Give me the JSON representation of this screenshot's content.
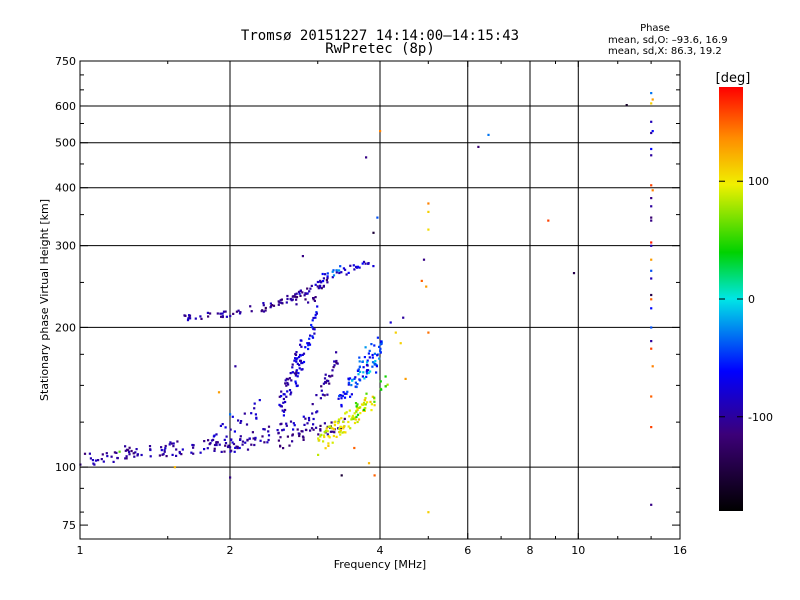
{
  "header": {
    "title_line1": "Tromsø 20151227 14:14:00–14:15:43",
    "title_line2": "RwPretec (8p)"
  },
  "phase_box": {
    "heading": "Phase",
    "line_o": "mean, sd,O: –93.6, 16.9",
    "line_x": "mean, sd,X:  86.3, 19.2"
  },
  "colorbar": {
    "label": "[deg]",
    "range": [
      -180,
      180
    ],
    "ticks": [
      {
        "value": 100,
        "label": "100"
      },
      {
        "value": 0,
        "label": "0"
      },
      {
        "value": -100,
        "label": "-100"
      }
    ]
  },
  "chart_data": {
    "type": "scatter",
    "title": "Tromsø 20151227 14:14:00–14:15:43",
    "subtitle": "RwPretec (8p)",
    "xlabel": "Frequency [MHz]",
    "ylabel": "Stationary phase Virtual Height [km]",
    "x_scale": "log",
    "y_scale": "log",
    "xlim": [
      1,
      16
    ],
    "ylim": [
      70,
      750
    ],
    "x_ticks": [
      {
        "v": 1,
        "label": "1"
      },
      {
        "v": 2,
        "label": "2"
      },
      {
        "v": 4,
        "label": "4"
      },
      {
        "v": 6,
        "label": "6"
      },
      {
        "v": 8,
        "label": "8"
      },
      {
        "v": 10,
        "label": "10"
      },
      {
        "v": 16,
        "label": "16"
      }
    ],
    "x_grid": [
      2,
      4,
      6,
      8,
      10
    ],
    "y_ticks": [
      {
        "v": 75,
        "label": "75"
      },
      {
        "v": 100,
        "label": "100"
      },
      {
        "v": 200,
        "label": "200"
      },
      {
        "v": 300,
        "label": "300"
      },
      {
        "v": 400,
        "label": "400"
      },
      {
        "v": 500,
        "label": "500"
      },
      {
        "v": 600,
        "label": "600"
      },
      {
        "v": 750,
        "label": "750"
      }
    ],
    "y_grid": [
      100,
      200,
      300,
      400,
      500,
      600
    ],
    "grid": true,
    "color_variable": "phase [deg]",
    "traces": [
      {
        "kind": "band",
        "f_start": 1.0,
        "f_end": 1.3,
        "h_start": 103,
        "h_end": 108,
        "phase": -100,
        "n": 35,
        "spread": 4
      },
      {
        "kind": "band",
        "f_start": 1.3,
        "f_end": 2.2,
        "h_start": 108,
        "h_end": 113,
        "phase": -100,
        "n": 70,
        "spread": 4
      },
      {
        "kind": "band",
        "f_start": 2.0,
        "f_end": 2.9,
        "h_start": 112,
        "h_end": 125,
        "phase": -95,
        "n": 45,
        "spread": 5
      },
      {
        "kind": "band",
        "f_start": 2.5,
        "f_end": 3.4,
        "h_start": 112,
        "h_end": 125,
        "phase": -110,
        "n": 40,
        "spread": 4
      },
      {
        "kind": "band",
        "f_start": 1.8,
        "f_end": 2.3,
        "h_start": 112,
        "h_end": 135,
        "phase": -90,
        "n": 25,
        "spread": 6
      },
      {
        "kind": "band",
        "f_start": 2.5,
        "f_end": 2.8,
        "h_start": 130,
        "h_end": 185,
        "phase": -90,
        "n": 60,
        "spread": 12
      },
      {
        "kind": "band",
        "f_start": 2.7,
        "f_end": 3.0,
        "h_start": 150,
        "h_end": 215,
        "phase": -70,
        "n": 40,
        "spread": 10
      },
      {
        "kind": "band",
        "f_start": 2.9,
        "f_end": 3.3,
        "h_start": 125,
        "h_end": 175,
        "phase": -100,
        "n": 35,
        "spread": 10
      },
      {
        "kind": "band",
        "f_start": 3.3,
        "f_end": 3.9,
        "h_start": 140,
        "h_end": 170,
        "phase": -60,
        "n": 45,
        "spread": 8
      },
      {
        "kind": "band",
        "f_start": 3.5,
        "f_end": 4.0,
        "h_start": 150,
        "h_end": 175,
        "phase": -20,
        "n": 20,
        "spread": 6
      },
      {
        "kind": "band",
        "f_start": 3.0,
        "f_end": 3.9,
        "h_start": 112,
        "h_end": 140,
        "phase": 98,
        "n": 90,
        "spread": 6
      },
      {
        "kind": "band",
        "f_start": 3.5,
        "f_end": 4.2,
        "h_start": 130,
        "h_end": 155,
        "phase": 60,
        "n": 20,
        "spread": 6
      },
      {
        "kind": "band",
        "f_start": 1.6,
        "f_end": 2.1,
        "h_start": 210,
        "h_end": 215,
        "phase": -100,
        "n": 30,
        "spread": 3
      },
      {
        "kind": "band",
        "f_start": 2.1,
        "f_end": 3.0,
        "h_start": 218,
        "h_end": 232,
        "phase": -100,
        "n": 20,
        "spread": 4
      },
      {
        "kind": "band",
        "f_start": 2.3,
        "f_end": 3.2,
        "h_start": 218,
        "h_end": 252,
        "phase": -110,
        "n": 40,
        "spread": 4
      },
      {
        "kind": "band",
        "f_start": 2.6,
        "f_end": 3.1,
        "h_start": 230,
        "h_end": 250,
        "phase": -90,
        "n": 12,
        "spread": 4
      },
      {
        "kind": "band",
        "f_start": 3.0,
        "f_end": 3.9,
        "h_start": 255,
        "h_end": 275,
        "phase": -80,
        "n": 30,
        "spread": 6
      },
      {
        "kind": "band",
        "f_start": 3.0,
        "f_end": 3.4,
        "h_start": 255,
        "h_end": 270,
        "phase": -30,
        "n": 8,
        "spread": 5
      },
      {
        "kind": "band",
        "f_start": 3.6,
        "f_end": 4.0,
        "h_start": 165,
        "h_end": 200,
        "phase": -40,
        "n": 12,
        "spread": 8
      },
      {
        "kind": "band",
        "f_start": 3.9,
        "f_end": 4.05,
        "h_start": 160,
        "h_end": 190,
        "phase": -50,
        "n": 15,
        "spread": 6
      }
    ],
    "points": [
      {
        "f": 3.75,
        "h": 465,
        "phase": -110
      },
      {
        "f": 4.0,
        "h": 530,
        "phase": 140
      },
      {
        "f": 3.88,
        "h": 320,
        "phase": -150
      },
      {
        "f": 3.95,
        "h": 345,
        "phase": -40
      },
      {
        "f": 5.0,
        "h": 370,
        "phase": 140
      },
      {
        "f": 5.0,
        "h": 355,
        "phase": 110
      },
      {
        "f": 5.0,
        "h": 325,
        "phase": 105
      },
      {
        "f": 4.9,
        "h": 280,
        "phase": -110
      },
      {
        "f": 4.85,
        "h": 252,
        "phase": 150
      },
      {
        "f": 4.95,
        "h": 245,
        "phase": 130
      },
      {
        "f": 5.0,
        "h": 195,
        "phase": 145
      },
      {
        "f": 4.4,
        "h": 185,
        "phase": 110
      },
      {
        "f": 4.5,
        "h": 155,
        "phase": 130
      },
      {
        "f": 5.0,
        "h": 80,
        "phase": 110
      },
      {
        "f": 3.35,
        "h": 96,
        "phase": -150
      },
      {
        "f": 3.55,
        "h": 110,
        "phase": 150
      },
      {
        "f": 3.8,
        "h": 102,
        "phase": 120
      },
      {
        "f": 3.9,
        "h": 96,
        "phase": 150
      },
      {
        "f": 4.3,
        "h": 195,
        "phase": 110
      },
      {
        "f": 4.45,
        "h": 210,
        "phase": -100
      },
      {
        "f": 4.2,
        "h": 205,
        "phase": -80
      },
      {
        "f": 6.3,
        "h": 490,
        "phase": -120
      },
      {
        "f": 6.6,
        "h": 520,
        "phase": -30
      },
      {
        "f": 8.7,
        "h": 340,
        "phase": 160
      },
      {
        "f": 9.8,
        "h": 262,
        "phase": -140
      },
      {
        "f": 12.5,
        "h": 603,
        "phase": -160
      },
      {
        "f": 14.0,
        "h": 640,
        "phase": -30
      },
      {
        "f": 14.1,
        "h": 620,
        "phase": 130
      },
      {
        "f": 14.0,
        "h": 608,
        "phase": 110
      },
      {
        "f": 14.0,
        "h": 555,
        "phase": -90
      },
      {
        "f": 14.1,
        "h": 530,
        "phase": -60
      },
      {
        "f": 14.0,
        "h": 525,
        "phase": -100
      },
      {
        "f": 14.0,
        "h": 485,
        "phase": -60
      },
      {
        "f": 14.0,
        "h": 470,
        "phase": -100
      },
      {
        "f": 14.0,
        "h": 405,
        "phase": 160
      },
      {
        "f": 14.1,
        "h": 395,
        "phase": 140
      },
      {
        "f": 14.0,
        "h": 380,
        "phase": -110
      },
      {
        "f": 14.0,
        "h": 365,
        "phase": -100
      },
      {
        "f": 14.0,
        "h": 345,
        "phase": -120
      },
      {
        "f": 14.0,
        "h": 340,
        "phase": -110
      },
      {
        "f": 14.0,
        "h": 305,
        "phase": 170
      },
      {
        "f": 14.0,
        "h": 300,
        "phase": -90
      },
      {
        "f": 14.0,
        "h": 280,
        "phase": 130
      },
      {
        "f": 14.0,
        "h": 265,
        "phase": -40
      },
      {
        "f": 14.0,
        "h": 255,
        "phase": -90
      },
      {
        "f": 14.0,
        "h": 235,
        "phase": -140
      },
      {
        "f": 14.0,
        "h": 230,
        "phase": 150
      },
      {
        "f": 14.0,
        "h": 220,
        "phase": -60
      },
      {
        "f": 14.0,
        "h": 200,
        "phase": -40
      },
      {
        "f": 14.0,
        "h": 187,
        "phase": -100
      },
      {
        "f": 14.0,
        "h": 180,
        "phase": 160
      },
      {
        "f": 14.1,
        "h": 165,
        "phase": 140
      },
      {
        "f": 14.0,
        "h": 142,
        "phase": 150
      },
      {
        "f": 14.0,
        "h": 122,
        "phase": 160
      },
      {
        "f": 14.0,
        "h": 83,
        "phase": -110
      },
      {
        "f": 1.55,
        "h": 100,
        "phase": 120
      },
      {
        "f": 2.0,
        "h": 95,
        "phase": -110
      },
      {
        "f": 1.2,
        "h": 108,
        "phase": 60
      },
      {
        "f": 1.9,
        "h": 145,
        "phase": 130
      },
      {
        "f": 2.05,
        "h": 165,
        "phase": -100
      },
      {
        "f": 2.0,
        "h": 130,
        "phase": -30
      },
      {
        "f": 2.8,
        "h": 285,
        "phase": -110
      }
    ]
  }
}
